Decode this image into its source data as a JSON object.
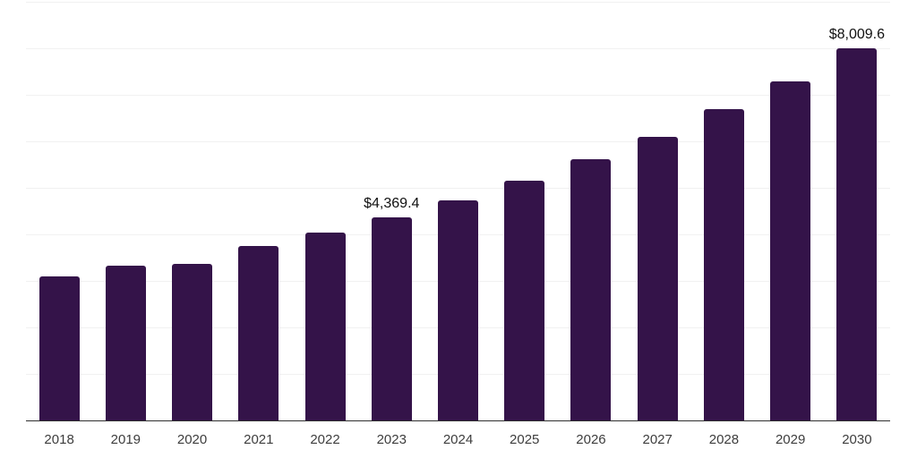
{
  "chart_data": {
    "type": "bar",
    "title": "",
    "xlabel": "",
    "ylabel": "",
    "categories": [
      "2018",
      "2019",
      "2020",
      "2021",
      "2022",
      "2023",
      "2024",
      "2025",
      "2026",
      "2027",
      "2028",
      "2029",
      "2030"
    ],
    "values": [
      3100,
      3330,
      3370,
      3760,
      4040,
      4369.4,
      4730,
      5160,
      5620,
      6110,
      6690,
      7300,
      8009.6
    ],
    "annotations": [
      {
        "category": "2023",
        "text": "$4,369.4"
      },
      {
        "category": "2030",
        "text": "$8,009.6"
      }
    ],
    "ylim": [
      0,
      9000
    ],
    "gridline_interval": 1000,
    "grid": true,
    "legend": false,
    "colors": {
      "bar": "#341349",
      "gridline": "#f1f1f1",
      "axis_line": "#2f2f2f",
      "tick_label": "#3d3d3d",
      "data_label": "#111111",
      "background": "#ffffff"
    }
  }
}
